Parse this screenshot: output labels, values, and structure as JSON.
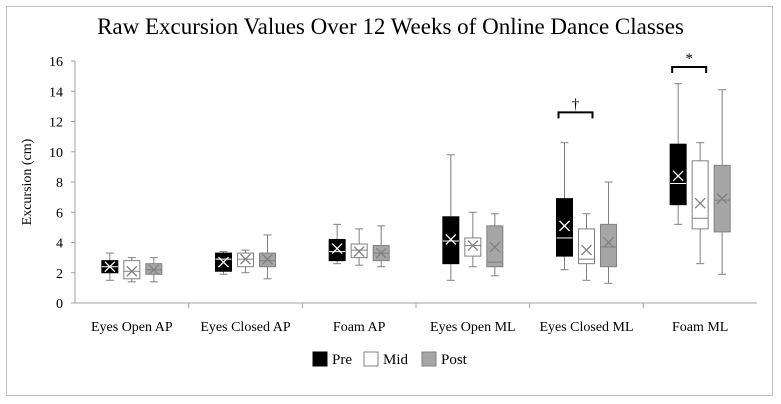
{
  "chart_data": {
    "type": "boxplot",
    "title": "Raw Excursion Values Over 12 Weeks of Online Dance Classes",
    "ylabel": "Excursion (cm)",
    "xlabel": "",
    "ylim": [
      0,
      16
    ],
    "yticks": [
      0,
      2,
      4,
      6,
      8,
      10,
      12,
      14,
      16
    ],
    "grid": false,
    "legend_position": "bottom",
    "categories": [
      "Eyes Open AP",
      "Eyes Closed AP",
      "Foam AP",
      "Eyes Open ML",
      "Eyes Closed ML",
      "Foam ML"
    ],
    "series": [
      {
        "name": "Pre",
        "fill": "#000000",
        "stroke": "#000000",
        "mean_color": "#ffffff",
        "boxes": [
          {
            "min": 1.5,
            "q1": 2.0,
            "median": 2.4,
            "q3": 2.8,
            "max": 3.3,
            "mean": 2.4
          },
          {
            "min": 1.9,
            "q1": 2.1,
            "median": 2.9,
            "q3": 3.3,
            "max": 3.4,
            "mean": 2.7
          },
          {
            "min": 2.6,
            "q1": 2.8,
            "median": 3.4,
            "q3": 4.2,
            "max": 5.2,
            "mean": 3.6
          },
          {
            "min": 1.5,
            "q1": 2.6,
            "median": 4.1,
            "q3": 5.7,
            "max": 9.8,
            "mean": 4.2
          },
          {
            "min": 2.2,
            "q1": 3.1,
            "median": 4.3,
            "q3": 6.9,
            "max": 10.6,
            "mean": 5.1
          },
          {
            "min": 5.2,
            "q1": 6.5,
            "median": 7.9,
            "q3": 10.5,
            "max": 14.5,
            "mean": 8.4
          }
        ]
      },
      {
        "name": "Mid",
        "fill": "#ffffff",
        "stroke": "#808080",
        "mean_color": "#808080",
        "boxes": [
          {
            "min": 1.4,
            "q1": 1.6,
            "median": 2.1,
            "q3": 2.8,
            "max": 3.0,
            "mean": 2.1
          },
          {
            "min": 2.0,
            "q1": 2.4,
            "median": 2.9,
            "q3": 3.3,
            "max": 3.5,
            "mean": 2.9
          },
          {
            "min": 2.5,
            "q1": 3.0,
            "median": 3.5,
            "q3": 3.9,
            "max": 4.9,
            "mean": 3.4
          },
          {
            "min": 2.4,
            "q1": 3.1,
            "median": 3.8,
            "q3": 4.3,
            "max": 6.0,
            "mean": 3.8
          },
          {
            "min": 1.5,
            "q1": 2.6,
            "median": 2.9,
            "q3": 4.9,
            "max": 5.9,
            "mean": 3.5
          },
          {
            "min": 2.6,
            "q1": 4.9,
            "median": 5.6,
            "q3": 9.4,
            "max": 10.6,
            "mean": 6.6
          }
        ]
      },
      {
        "name": "Post",
        "fill": "#a6a6a6",
        "stroke": "#808080",
        "mean_color": "#808080",
        "boxes": [
          {
            "min": 1.4,
            "q1": 1.9,
            "median": 2.2,
            "q3": 2.6,
            "max": 3.0,
            "mean": 2.2
          },
          {
            "min": 1.6,
            "q1": 2.4,
            "median": 2.8,
            "q3": 3.3,
            "max": 4.5,
            "mean": 2.9
          },
          {
            "min": 2.4,
            "q1": 2.8,
            "median": 3.3,
            "q3": 3.8,
            "max": 5.1,
            "mean": 3.3
          },
          {
            "min": 1.8,
            "q1": 2.4,
            "median": 2.7,
            "q3": 5.1,
            "max": 5.9,
            "mean": 3.7
          },
          {
            "min": 1.3,
            "q1": 2.4,
            "median": 3.7,
            "q3": 5.2,
            "max": 8.0,
            "mean": 4.0
          },
          {
            "min": 1.9,
            "q1": 4.7,
            "median": 6.8,
            "q3": 9.1,
            "max": 14.1,
            "mean": 6.9
          }
        ]
      }
    ],
    "annotations": [
      {
        "text": "†",
        "category_index": 4,
        "value": 12.6,
        "from_series": 0,
        "to_series": 1
      },
      {
        "text": "*",
        "category_index": 5,
        "value": 15.6,
        "from_series": 0,
        "to_series": 1
      }
    ]
  }
}
